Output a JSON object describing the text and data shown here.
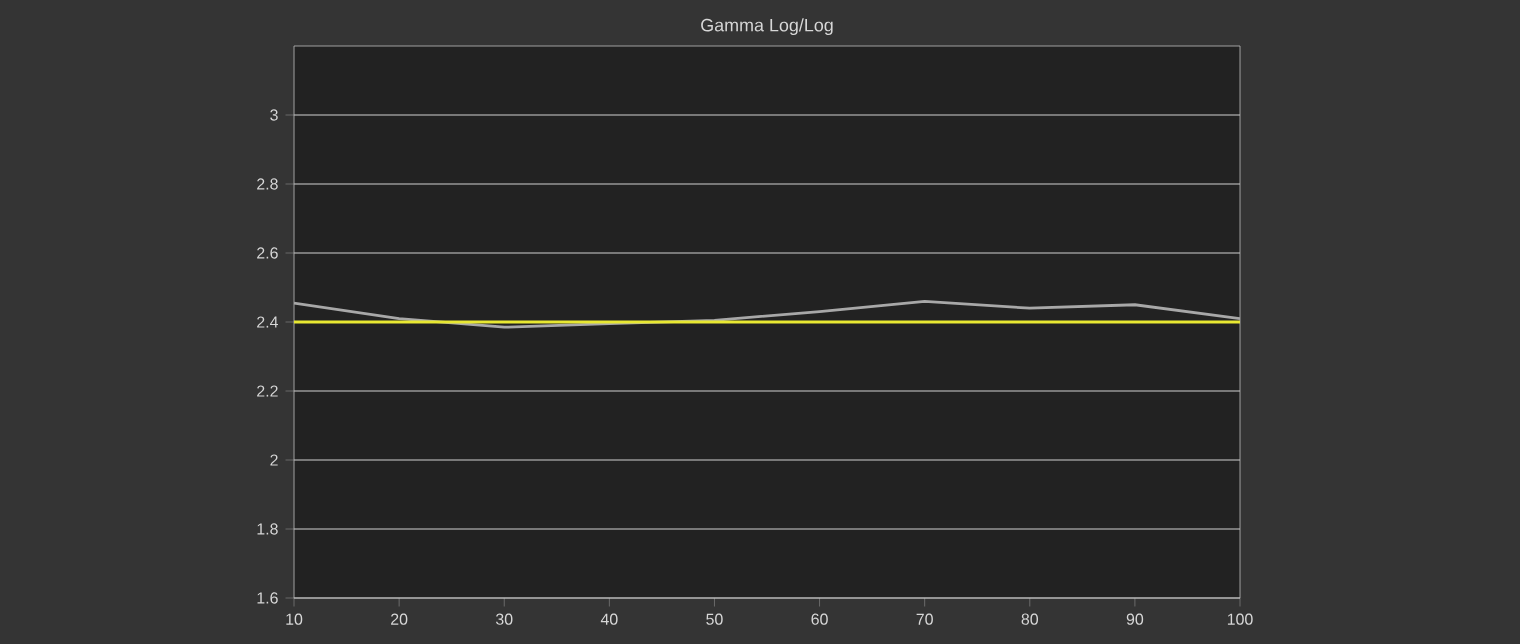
{
  "chart_data": {
    "type": "line",
    "title": "Gamma Log/Log",
    "x": [
      10,
      20,
      30,
      40,
      50,
      60,
      70,
      80,
      90,
      100
    ],
    "series": [
      {
        "color": "#a8a8a8",
        "values": [
          2.455,
          2.41,
          2.385,
          2.395,
          2.405,
          2.43,
          2.46,
          2.44,
          2.45,
          2.41
        ]
      }
    ],
    "xlim": [
      10,
      100
    ],
    "xticks": [
      10,
      20,
      30,
      40,
      50,
      60,
      70,
      80,
      90,
      100
    ],
    "ylim": [
      1.6,
      3.2
    ],
    "yticks": [
      1.6,
      1.8,
      2,
      2.2,
      2.4,
      2.6,
      2.8,
      3
    ],
    "ref_lines": [
      {
        "axis": "y",
        "value": 2.4,
        "color": "#e8e832"
      }
    ],
    "grid": "y",
    "legend": false,
    "marker": "none",
    "line_style": "solid"
  }
}
